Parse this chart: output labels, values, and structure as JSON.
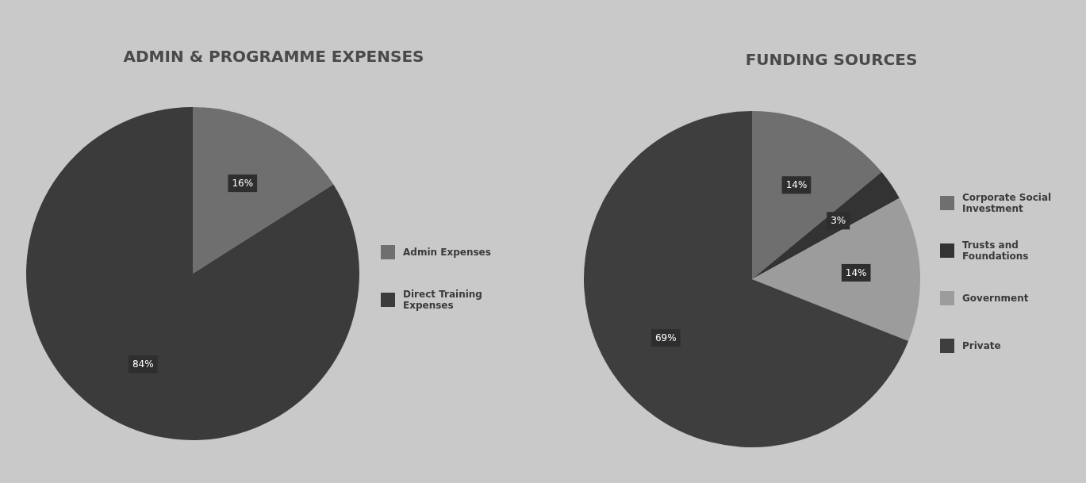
{
  "chart_data": [
    {
      "type": "pie",
      "title": "ADMIN & PROGRAMME EXPENSES",
      "categories": [
        "Admin Expenses",
        "Direct Training Expenses"
      ],
      "values": [
        16,
        84
      ],
      "colors": [
        "#6f6f6f",
        "#3b3b3b"
      ],
      "value_labels": [
        "16%",
        "84%"
      ],
      "legend": "right"
    },
    {
      "type": "pie",
      "title": "FUNDING SOURCES",
      "categories": [
        "Corporate Social Investment",
        "Trusts and Foundations",
        "Government",
        "Private"
      ],
      "values": [
        14,
        3,
        14,
        69
      ],
      "colors": [
        "#6f6f6f",
        "#333333",
        "#9c9c9c",
        "#3e3e3e"
      ],
      "value_labels": [
        "14%",
        "3%",
        "14%",
        "69%"
      ],
      "legend": "right"
    }
  ]
}
